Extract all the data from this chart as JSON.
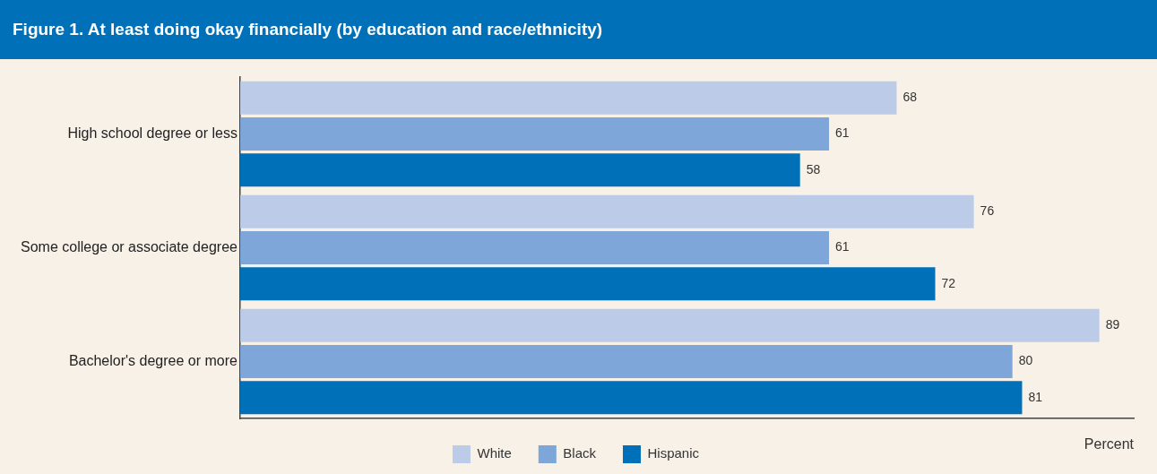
{
  "chart_data": {
    "type": "bar",
    "orientation": "horizontal",
    "title": "Figure 1. At least doing okay financially (by education and race/ethnicity)",
    "xlabel": "Percent",
    "categories": [
      "High school degree or less",
      "Some college or associate degree",
      "Bachelor's degree or more"
    ],
    "series": [
      {
        "name": "White",
        "color": "#bccbe8",
        "values": [
          68,
          76,
          89
        ]
      },
      {
        "name": "Black",
        "color": "#7ea6d9",
        "values": [
          61,
          61,
          80
        ]
      },
      {
        "name": "Hispanic",
        "color": "#0070b8",
        "values": [
          58,
          72,
          81
        ]
      }
    ],
    "data_labels": true,
    "legend": "bottom",
    "grid": false
  }
}
